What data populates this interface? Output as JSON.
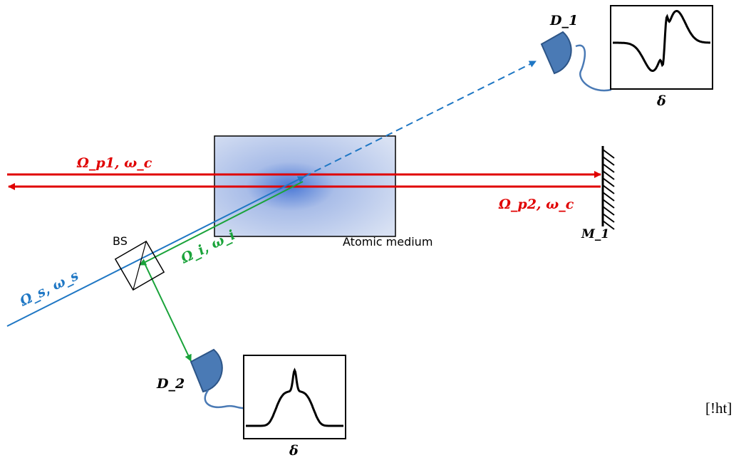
{
  "labels": {
    "pump_forward": "Ω_p1, ω_c",
    "pump_backward": "Ω_p2, ω_c",
    "signal": "Ω_s, ω_s",
    "idler": "Ω_i, ω_i",
    "medium": "Atomic medium",
    "beam_splitter": "BS",
    "mirror": "M_1",
    "detector_1": "D_1",
    "detector_2": "D_2",
    "plot_1_axis": "δ",
    "plot_2_axis": "δ",
    "placement": "[!ht]"
  },
  "colors": {
    "pump": "#e00000",
    "signal": "#1f77c4",
    "idler": "#1aa33a",
    "detector": "#4a7ab5",
    "detector_stroke": "#2d5587",
    "ink": "#000000"
  },
  "icons": {
    "detector_1": "photodetector-icon",
    "detector_2": "photodetector-icon",
    "mirror": "hatched-mirror-icon",
    "beam_splitter": "cube-beam-splitter-icon"
  }
}
